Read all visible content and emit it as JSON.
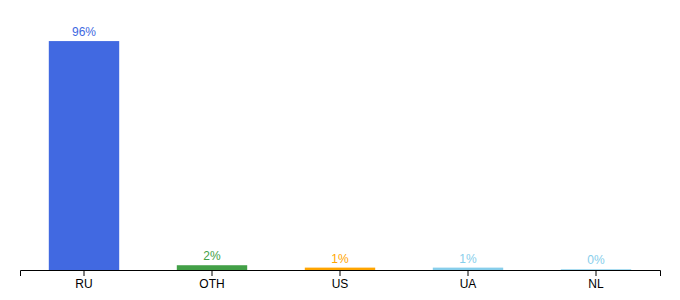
{
  "chart_data": {
    "type": "bar",
    "categories": [
      "RU",
      "OTH",
      "US",
      "UA",
      "NL"
    ],
    "values": [
      96,
      2,
      1,
      1,
      0.3
    ],
    "value_labels": [
      "96%",
      "2%",
      "1%",
      "1%",
      "0%"
    ],
    "colors": [
      "#4169e1",
      "#43a047",
      "#ffa500",
      "#87ceeb",
      "#87ceeb"
    ],
    "ylim": [
      0,
      104
    ],
    "data_labels": true,
    "tick_labels": "x"
  }
}
